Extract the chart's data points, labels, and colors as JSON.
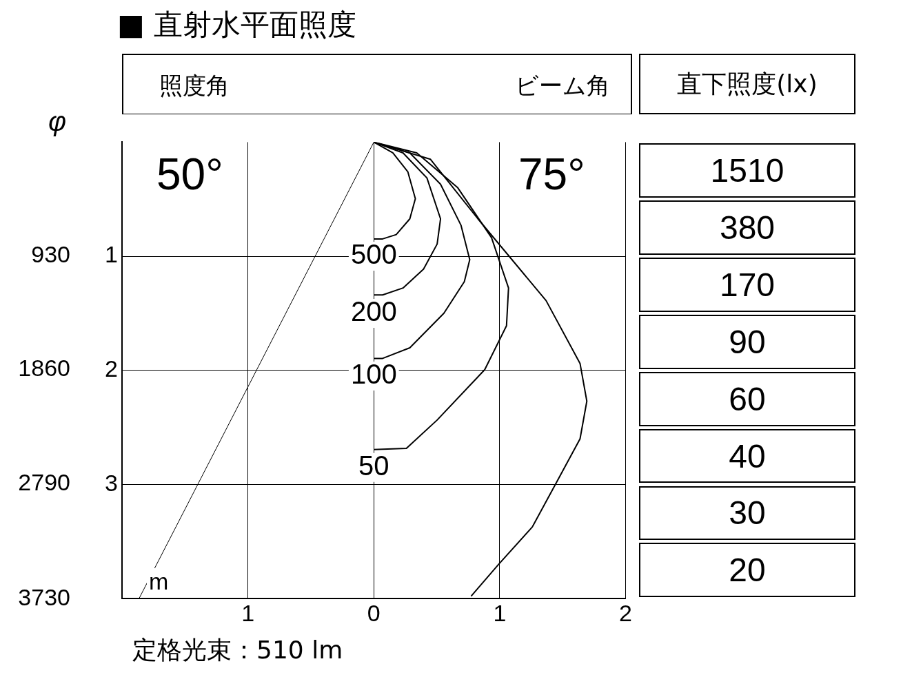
{
  "chart_data": [
    {
      "type": "line",
      "title": "■ 直射水平面照度",
      "xlabel": "m",
      "y2label": "φ",
      "xlim": [
        -2,
        2
      ],
      "ylim": [
        4,
        0
      ],
      "xticks": [
        {
          "value": -1,
          "label": "1"
        },
        0,
        1,
        2
      ],
      "yticks": [
        1,
        2,
        3
      ],
      "y2lim": [
        3730,
        0
      ],
      "y2ticks": [
        930,
        1860,
        2790,
        3730
      ],
      "grid": true,
      "legend": false,
      "marker": "none",
      "series": [
        {
          "color": "#000000",
          "x": [
            0,
            -1.865
          ],
          "values": [
            0,
            4
          ]
        },
        {
          "color": "#000000",
          "x": [
            0,
            0.151,
            0.27,
            0.33,
            0.286,
            0.178,
            0.07,
            0
          ],
          "values": [
            0,
            0.094,
            0.259,
            0.496,
            0.672,
            0.81,
            0.848,
            0.848
          ]
        },
        {
          "color": "#000000",
          "x": [
            0,
            0.232,
            0.422,
            0.53,
            0.503,
            0.395,
            0.232,
            0.07,
            0
          ],
          "values": [
            0,
            0.094,
            0.314,
            0.672,
            0.893,
            1.113,
            1.278,
            1.339,
            1.339
          ]
        },
        {
          "color": "#000000",
          "x": [
            0,
            0.286,
            0.53,
            0.692,
            0.762,
            0.719,
            0.557,
            0.286,
            0.07,
            0
          ],
          "values": [
            0,
            0.094,
            0.369,
            0.727,
            1.03,
            1.223,
            1.499,
            1.802,
            1.895,
            1.895
          ]
        },
        {
          "color": "#000000",
          "x": [
            0,
            0.341,
            0.665,
            0.935,
            1.07,
            1.054,
            0.881,
            0.503,
            0.259,
            0
          ],
          "values": [
            0,
            0.094,
            0.397,
            0.837,
            1.278,
            1.609,
            1.994,
            2.435,
            2.683,
            2.694
          ]
        },
        {
          "color": "#000000",
          "x": [
            0,
            0.45,
            0.827,
            1.368,
            1.638,
            1.692,
            1.638,
            1.476,
            1.259,
            0.989,
            0.773
          ],
          "values": [
            0,
            0.15,
            0.672,
            1.388,
            1.939,
            2.27,
            2.6,
            2.931,
            3.372,
            3.702,
            3.978
          ]
        }
      ],
      "annotations": [
        "照度角",
        "ビーム角",
        "50°",
        "75°",
        "500",
        "200",
        "100",
        "50",
        "定格光束：510 lm"
      ]
    },
    {
      "type": "other",
      "title": "直下照度(lx)",
      "values": [
        1510,
        380,
        170,
        90,
        60,
        40,
        30,
        20
      ],
      "data_labels": true
    }
  ]
}
